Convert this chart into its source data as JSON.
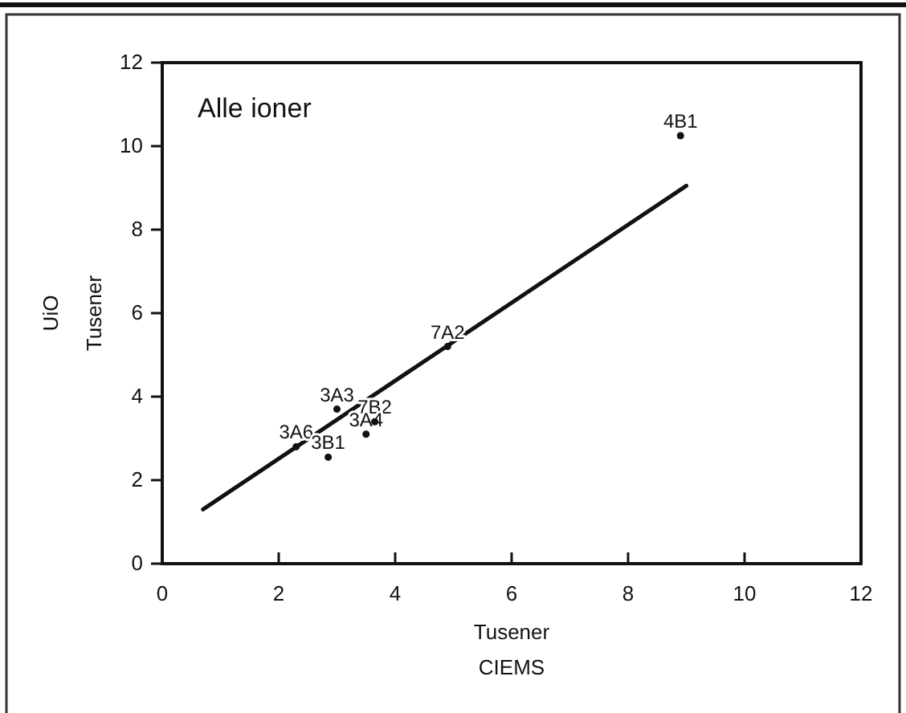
{
  "chart_data": {
    "type": "scatter",
    "title": "Alle ioner",
    "xlabel": "Tusener\nCIEMS",
    "ylabel": "UiO\nTusener",
    "xlim": [
      0,
      12
    ],
    "ylim": [
      0,
      12
    ],
    "xticks": [
      0,
      2,
      4,
      6,
      8,
      10,
      12
    ],
    "yticks": [
      0,
      2,
      4,
      6,
      8,
      10,
      12
    ],
    "grid": false,
    "series": [
      {
        "marker": "circle",
        "color": "#111111",
        "x": [
          8.9,
          4.9,
          3.0,
          3.65,
          3.5,
          2.3,
          2.85
        ],
        "values": [
          10.25,
          5.2,
          3.7,
          3.4,
          3.1,
          2.8,
          2.55
        ],
        "value_labels": [
          "4B1",
          "7A2",
          "3A3",
          "7B2",
          "3A4",
          "3A6",
          "3B1"
        ]
      },
      {
        "type": "line",
        "color": "#111111",
        "line_style": "solid",
        "x": [
          0.7,
          9.0
        ],
        "values": [
          1.3,
          9.05
        ]
      }
    ]
  }
}
